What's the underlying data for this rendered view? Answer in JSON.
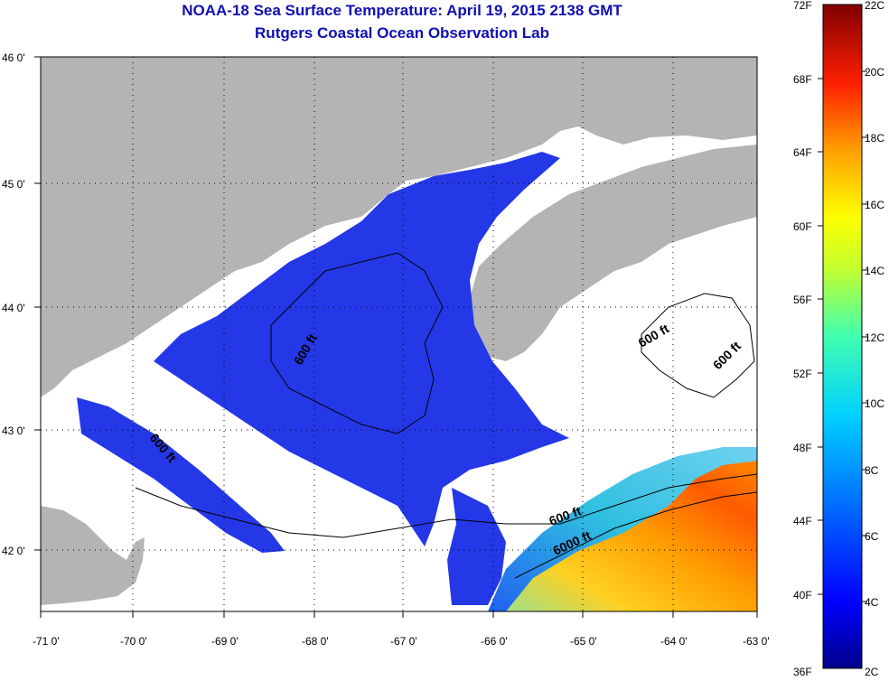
{
  "title": "NOAA-18 Sea Surface Temperature:  April 19, 2015 2138 GMT",
  "subtitle": "Rutgers Coastal Ocean Observation Lab",
  "x_ticks": [
    "-71 0'",
    "-70 0'",
    "-69 0'",
    "-68 0'",
    "-67 0'",
    "-66 0'",
    "-65 0'",
    "-64 0'",
    "-63 0'"
  ],
  "y_ticks": [
    "46 0'",
    "45 0'",
    "44 0'",
    "43 0'",
    "42 0'"
  ],
  "contour_labels": [
    "600 ft",
    "600 ft",
    "600 ft",
    "600 ft",
    "6000 ft"
  ],
  "colorbar": {
    "f_labels": [
      "72F",
      "68F",
      "64F",
      "60F",
      "56F",
      "52F",
      "48F",
      "44F",
      "40F",
      "36F"
    ],
    "c_labels": [
      "22C",
      "20C",
      "18C",
      "16C",
      "14C",
      "12C",
      "10C",
      "8C",
      "6C",
      "4C",
      "2C"
    ],
    "range_c": [
      2,
      22
    ],
    "range_f": [
      36,
      72
    ]
  },
  "colors": {
    "land": "#b4b4b4",
    "cold_water": "#2438e8",
    "warm_water": "#ff8a00",
    "title": "#1010b0"
  }
}
